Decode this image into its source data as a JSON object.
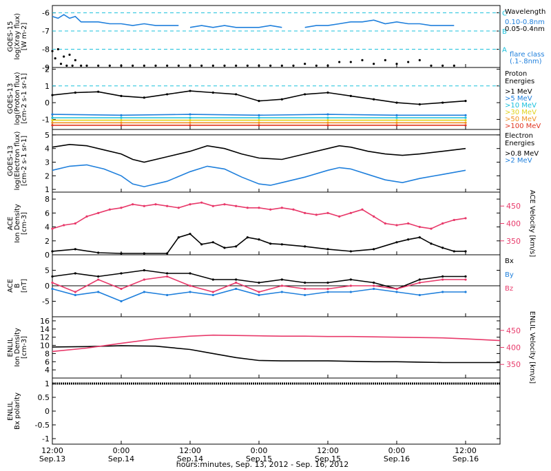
{
  "xaxis": {
    "title": "hours:minutes, Sep. 13, 2012 - Sep. 16, 2012",
    "ticks": [
      {
        "t": 0,
        "time": "12:00",
        "date": "Sep.13"
      },
      {
        "t": 12,
        "time": "0:00",
        "date": "Sep.14"
      },
      {
        "t": 24,
        "time": "12:00",
        "date": "Sep.14"
      },
      {
        "t": 36,
        "time": "0:00",
        "date": "Sep.15"
      },
      {
        "t": 48,
        "time": "12:00",
        "date": "Sep.15"
      },
      {
        "t": 60,
        "time": "0:00",
        "date": "Sep.16"
      },
      {
        "t": 72,
        "time": "12:00",
        "date": "Sep.16"
      }
    ],
    "range_hours": [
      0,
      78
    ]
  },
  "colors": {
    "black": "#000000",
    "blue": "#1e7fdc",
    "cyan": "#19c0dc",
    "green": "#38c93a",
    "yellow": "#e0d21b",
    "orange": "#f0901e",
    "red": "#e0341f",
    "pink": "#e8396a"
  },
  "chart_data": [
    {
      "id": "xray",
      "type": "line",
      "ylabel": [
        "GOES-15",
        "log(Xray flux)",
        "[W m-2]"
      ],
      "ylim": [
        -9,
        -5.6
      ],
      "yticks": [
        -9,
        -8,
        -7,
        -6
      ],
      "hlines": [
        {
          "y": -6,
          "label": "C"
        },
        {
          "y": -7,
          "label": "B"
        },
        {
          "y": -8,
          "label": "A"
        }
      ],
      "legend": {
        "title": "Wavelength",
        "entries": [
          {
            "text": "0.10-0.8nm",
            "color": "blue"
          },
          {
            "text": "0.05-0.4nm",
            "color": "black"
          }
        ],
        "footer": [
          "flare class",
          "(.1-.8nm)"
        ]
      },
      "series": [
        {
          "name": "0.10-0.8nm",
          "color": "blue",
          "style": "line",
          "x": [
            0,
            1,
            2,
            3,
            4,
            5,
            6,
            8,
            10,
            12,
            14,
            16,
            18,
            20,
            22,
            23,
            24,
            26,
            28,
            30,
            32,
            34,
            36,
            38,
            40,
            42,
            44,
            46,
            48,
            50,
            52,
            54,
            56,
            58,
            60,
            62,
            64,
            66,
            68,
            70,
            72
          ],
          "y": [
            -6.2,
            -6.3,
            -6.1,
            -6.3,
            -6.2,
            -6.5,
            -6.5,
            -6.5,
            -6.6,
            -6.6,
            -6.7,
            -6.6,
            -6.7,
            -6.7,
            -6.7,
            null,
            -6.8,
            -6.7,
            -6.8,
            -6.7,
            -6.8,
            -6.8,
            -6.8,
            -6.7,
            -6.8,
            null,
            -6.8,
            -6.7,
            -6.7,
            -6.6,
            -6.5,
            -6.5,
            -6.4,
            -6.6,
            -6.5,
            -6.6,
            -6.6,
            -6.7,
            -6.7,
            -6.7,
            null
          ]
        },
        {
          "name": "0.05-0.4nm",
          "color": "black",
          "style": "dots",
          "x": [
            0,
            0.5,
            1,
            1.5,
            2,
            2.5,
            3,
            3.5,
            4,
            5,
            6,
            8,
            10,
            12,
            14,
            16,
            18,
            20,
            22,
            24,
            26,
            28,
            30,
            32,
            34,
            36,
            38,
            40,
            42,
            44,
            46,
            48,
            50,
            52,
            54,
            56,
            58,
            60,
            62,
            64,
            66,
            68,
            70
          ],
          "y": [
            -8.1,
            -8.5,
            -8.0,
            -8.8,
            -8.4,
            -8.9,
            -8.3,
            -8.9,
            -8.6,
            -8.9,
            -8.9,
            -8.9,
            -8.9,
            -8.9,
            -8.9,
            -8.9,
            -8.9,
            -8.9,
            -8.9,
            -8.9,
            -8.9,
            -8.9,
            -8.9,
            -8.9,
            -8.9,
            -8.9,
            -8.9,
            -8.9,
            -8.9,
            -8.8,
            -8.9,
            -8.9,
            -8.7,
            -8.7,
            -8.6,
            -8.8,
            -8.6,
            -8.8,
            -8.7,
            -8.6,
            -8.9,
            -8.9,
            -8.9
          ]
        }
      ]
    },
    {
      "id": "proton",
      "type": "scatter",
      "ylabel": [
        "GOES-13",
        "log(Proton flux)",
        "[cm-2 s-1 sr-1]"
      ],
      "ylim": [
        -1.6,
        2.1
      ],
      "yticks": [
        -1,
        0,
        1,
        2
      ],
      "hlines": [
        {
          "y": 1,
          "label": ""
        }
      ],
      "legend": {
        "title": "Proton Energies",
        "entries": [
          {
            "text": ">1 MeV",
            "color": "black"
          },
          {
            "text": ">5 MeV",
            "color": "blue"
          },
          {
            "text": ">10 MeV",
            "color": "cyan"
          },
          {
            "text": ">30 MeV",
            "color": "yellow"
          },
          {
            "text": ">50 MeV",
            "color": "orange"
          },
          {
            "text": ">100 MeV",
            "color": "red"
          }
        ]
      },
      "series": [
        {
          "name": ">1 MeV",
          "color": "black",
          "x": [
            0,
            4,
            8,
            12,
            16,
            20,
            24,
            28,
            32,
            36,
            40,
            44,
            48,
            52,
            56,
            60,
            64,
            68,
            72
          ],
          "y": [
            0.45,
            0.6,
            0.65,
            0.4,
            0.3,
            0.5,
            0.7,
            0.6,
            0.5,
            0.1,
            0.2,
            0.5,
            0.6,
            0.4,
            0.2,
            0.0,
            -0.1,
            0.0,
            0.1
          ]
        },
        {
          "name": ">5 MeV",
          "color": "blue",
          "x": [
            0,
            12,
            24,
            36,
            48,
            60,
            72
          ],
          "y": [
            -0.7,
            -0.75,
            -0.7,
            -0.75,
            -0.7,
            -0.75,
            -0.75
          ]
        },
        {
          "name": ">10 MeV",
          "color": "cyan",
          "x": [
            0,
            12,
            24,
            36,
            48,
            60,
            72
          ],
          "y": [
            -0.9,
            -0.9,
            -0.9,
            -0.9,
            -0.9,
            -0.9,
            -0.9
          ]
        },
        {
          "name": ">30 MeV",
          "color": "yellow",
          "x": [
            0,
            12,
            24,
            36,
            48,
            60,
            72
          ],
          "y": [
            -1.05,
            -1.05,
            -1.05,
            -1.05,
            -1.05,
            -1.05,
            -1.05
          ]
        },
        {
          "name": ">50 MeV",
          "color": "orange",
          "x": [
            0,
            12,
            24,
            36,
            48,
            60,
            72
          ],
          "y": [
            -1.2,
            -1.2,
            -1.2,
            -1.2,
            -1.2,
            -1.2,
            -1.2
          ]
        },
        {
          "name": ">100 MeV",
          "color": "red",
          "x": [
            0,
            12,
            24,
            36,
            48,
            60,
            72
          ],
          "y": [
            -1.35,
            -1.35,
            -1.35,
            -1.35,
            -1.35,
            -1.35,
            -1.35
          ]
        }
      ]
    },
    {
      "id": "electron",
      "type": "line",
      "ylabel": [
        "GOES-13",
        "log(Electron flux)",
        "[cm-2 s-1 sr-1]"
      ],
      "ylim": [
        0.8,
        5.4
      ],
      "yticks": [
        1,
        2,
        3,
        4,
        5
      ],
      "hlines": [
        {
          "y": 5,
          "label": "",
          "color": "black"
        }
      ],
      "legend": {
        "title": "Electron Energies",
        "entries": [
          {
            "text": ">0.8 MeV",
            "color": "black"
          },
          {
            "text": ">2 MeV",
            "color": "blue"
          }
        ]
      },
      "series": [
        {
          "name": ">0.8 MeV",
          "color": "black",
          "x": [
            0,
            3,
            6,
            9,
            12,
            14,
            16,
            20,
            24,
            27,
            30,
            33,
            36,
            40,
            44,
            48,
            50,
            52,
            55,
            58,
            61,
            64,
            68,
            72
          ],
          "y": [
            4.1,
            4.3,
            4.2,
            3.9,
            3.6,
            3.2,
            3.0,
            3.4,
            3.8,
            4.2,
            4.0,
            3.6,
            3.3,
            3.2,
            3.6,
            4.0,
            4.2,
            4.1,
            3.8,
            3.6,
            3.5,
            3.6,
            3.8,
            4.0
          ]
        },
        {
          "name": ">2 MeV",
          "color": "blue",
          "x": [
            0,
            3,
            6,
            9,
            12,
            14,
            16,
            20,
            24,
            27,
            30,
            33,
            36,
            38,
            40,
            44,
            48,
            50,
            52,
            55,
            58,
            61,
            64,
            68,
            72
          ],
          "y": [
            2.4,
            2.7,
            2.8,
            2.5,
            2.0,
            1.4,
            1.2,
            1.6,
            2.3,
            2.7,
            2.5,
            1.9,
            1.4,
            1.3,
            1.5,
            1.9,
            2.4,
            2.6,
            2.5,
            2.1,
            1.7,
            1.5,
            1.8,
            2.1,
            2.4
          ]
        }
      ]
    },
    {
      "id": "ace_density",
      "type": "scatter",
      "ylabel": [
        "ACE",
        "Ion Density",
        "[cm-3]"
      ],
      "ylim": [
        0,
        9
      ],
      "yticks": [
        0,
        2,
        4,
        6,
        8
      ],
      "y2label": [
        "ACE",
        "Velocity",
        "[km/s]"
      ],
      "y2lim": [
        310,
        490
      ],
      "y2ticks": [
        350,
        400,
        450
      ],
      "series": [
        {
          "name": "",
          "color": "black",
          "axis": "y",
          "x": [
            0,
            4,
            8,
            12,
            16,
            20,
            22,
            24,
            26,
            28,
            30,
            32,
            34,
            36,
            38,
            40,
            44,
            48,
            52,
            56,
            60,
            62,
            64,
            66,
            68,
            70,
            72
          ],
          "y": [
            0.5,
            0.8,
            0.3,
            0.2,
            0.2,
            0.2,
            2.5,
            3.0,
            1.5,
            1.8,
            1.0,
            1.2,
            2.5,
            2.2,
            1.6,
            1.5,
            1.2,
            0.8,
            0.5,
            0.8,
            1.8,
            2.2,
            2.5,
            1.6,
            1.0,
            0.5,
            0.5
          ]
        },
        {
          "name": "",
          "color": "pink",
          "axis": "y2",
          "x": [
            0,
            2,
            4,
            6,
            8,
            10,
            12,
            14,
            16,
            18,
            20,
            22,
            24,
            26,
            28,
            30,
            32,
            34,
            36,
            38,
            40,
            42,
            44,
            46,
            48,
            50,
            52,
            54,
            56,
            58,
            60,
            62,
            64,
            66,
            68,
            70,
            72
          ],
          "y": [
            385,
            395,
            400,
            420,
            430,
            440,
            445,
            455,
            450,
            455,
            450,
            445,
            455,
            460,
            450,
            455,
            450,
            445,
            445,
            440,
            445,
            440,
            430,
            425,
            430,
            420,
            430,
            440,
            420,
            400,
            395,
            400,
            390,
            385,
            400,
            410,
            415
          ]
        }
      ]
    },
    {
      "id": "ace_b",
      "type": "scatter",
      "ylabel": [
        "ACE",
        "B",
        "[nT]"
      ],
      "ylim": [
        -10,
        10
      ],
      "yticks": [
        -5,
        0,
        5
      ],
      "hlines": [
        {
          "y": 0,
          "label": "",
          "color": "black"
        }
      ],
      "legend": {
        "entries": [
          {
            "text": "Bx",
            "color": "black"
          },
          {
            "text": "By",
            "color": "blue"
          },
          {
            "text": "Bz",
            "color": "pink"
          }
        ]
      },
      "series": [
        {
          "name": "Bx",
          "color": "black",
          "x": [
            0,
            4,
            8,
            12,
            16,
            20,
            24,
            28,
            32,
            36,
            40,
            44,
            48,
            52,
            56,
            60,
            64,
            68,
            72
          ],
          "y": [
            3,
            4,
            3,
            4,
            5,
            4,
            4,
            2,
            2,
            1,
            2,
            1,
            1,
            2,
            1,
            -1,
            2,
            3,
            3
          ]
        },
        {
          "name": "By",
          "color": "blue",
          "x": [
            0,
            4,
            8,
            12,
            16,
            20,
            24,
            28,
            32,
            36,
            40,
            44,
            48,
            52,
            56,
            60,
            64,
            68,
            72
          ],
          "y": [
            -1,
            -3,
            -2,
            -5,
            -2,
            -3,
            -2,
            -3,
            -1,
            -3,
            -2,
            -3,
            -2,
            -2,
            -1,
            -2,
            -3,
            -2,
            -2
          ]
        },
        {
          "name": "Bz",
          "color": "pink",
          "x": [
            0,
            4,
            8,
            12,
            16,
            20,
            24,
            28,
            32,
            36,
            40,
            44,
            48,
            52,
            56,
            60,
            64,
            68,
            72
          ],
          "y": [
            1,
            -2,
            2,
            -1,
            2,
            3,
            0,
            -2,
            1,
            -2,
            0,
            -1,
            -1,
            0,
            0,
            -1,
            1,
            2,
            2
          ]
        }
      ]
    },
    {
      "id": "enlil_density",
      "type": "line",
      "ylabel": [
        "ENLIL",
        "Ion Density",
        "[cm-3]"
      ],
      "ylim": [
        2,
        17
      ],
      "yticks": [
        4,
        6,
        8,
        10,
        12,
        14,
        16
      ],
      "y2label": [
        "ENLIL",
        "Velocity",
        "[km/s]"
      ],
      "y2lim": [
        310,
        490
      ],
      "y2ticks": [
        350,
        400,
        450
      ],
      "series": [
        {
          "name": "",
          "color": "black",
          "axis": "y",
          "x": [
            0,
            6,
            12,
            18,
            24,
            28,
            32,
            36,
            40,
            44,
            48,
            52,
            56,
            60,
            64,
            68,
            72,
            78
          ],
          "y": [
            9.6,
            9.7,
            9.9,
            9.8,
            9.0,
            8.0,
            7.0,
            6.3,
            6.2,
            6.2,
            6.2,
            6.1,
            6.0,
            6.0,
            5.9,
            5.8,
            5.8,
            5.8
          ]
        },
        {
          "name": "",
          "color": "pink",
          "axis": "y2",
          "x": [
            0,
            6,
            12,
            18,
            24,
            28,
            32,
            36,
            40,
            44,
            48,
            52,
            56,
            60,
            64,
            68,
            72,
            78
          ],
          "y": [
            388,
            398,
            412,
            425,
            433,
            436,
            435,
            434,
            433,
            433,
            432,
            432,
            431,
            430,
            429,
            428,
            425,
            420
          ]
        }
      ]
    },
    {
      "id": "enlil_bx",
      "type": "line",
      "ylabel": [
        "ENLIL",
        "Bx polarity"
      ],
      "ylim": [
        -1.2,
        1.2
      ],
      "yticks": [
        -1.0,
        -0.5,
        0.0,
        0.5,
        1.0
      ],
      "series": [
        {
          "name": "",
          "color": "black",
          "x": [
            0,
            78
          ],
          "y": [
            1,
            1
          ]
        }
      ]
    }
  ]
}
